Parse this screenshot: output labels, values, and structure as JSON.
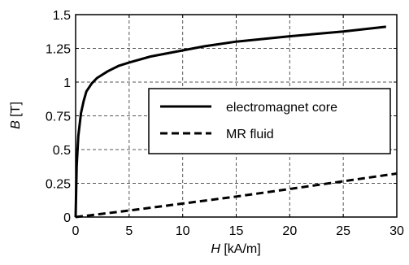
{
  "chart_data": {
    "type": "line",
    "x_label": {
      "italic": "H",
      "rest": " [kA/m]"
    },
    "y_label": {
      "italic": "B",
      "rest": " [T]"
    },
    "xlim": [
      0,
      30
    ],
    "ylim": [
      0,
      1.5
    ],
    "x_ticks": [
      0,
      5,
      10,
      15,
      20,
      25,
      30
    ],
    "x_tick_labels": [
      "0",
      "5",
      "10",
      "15",
      "20",
      "25",
      "30"
    ],
    "y_ticks": [
      0,
      0.25,
      0.5,
      0.75,
      1,
      1.25,
      1.5
    ],
    "y_tick_labels": [
      "0",
      "0.25",
      "0.5",
      "0.75",
      "1",
      "1.25",
      "1.5"
    ],
    "grid": true,
    "legend_position": "center-right",
    "series": [
      {
        "name": "electromagnet core",
        "line_style": "solid",
        "color": "#000000",
        "x": [
          0,
          0.1,
          0.25,
          0.5,
          0.75,
          1,
          1.5,
          2,
          3,
          4,
          5,
          7,
          10,
          12,
          15,
          20,
          25,
          29
        ],
        "y": [
          0,
          0.38,
          0.6,
          0.77,
          0.86,
          0.93,
          0.99,
          1.03,
          1.08,
          1.12,
          1.145,
          1.19,
          1.235,
          1.265,
          1.3,
          1.34,
          1.375,
          1.41
        ]
      },
      {
        "name": "MR fluid",
        "line_style": "dashed",
        "color": "#000000",
        "x": [
          0,
          5,
          10,
          15,
          20,
          25,
          30
        ],
        "y": [
          0,
          0.048,
          0.1,
          0.152,
          0.208,
          0.265,
          0.322
        ]
      }
    ]
  }
}
